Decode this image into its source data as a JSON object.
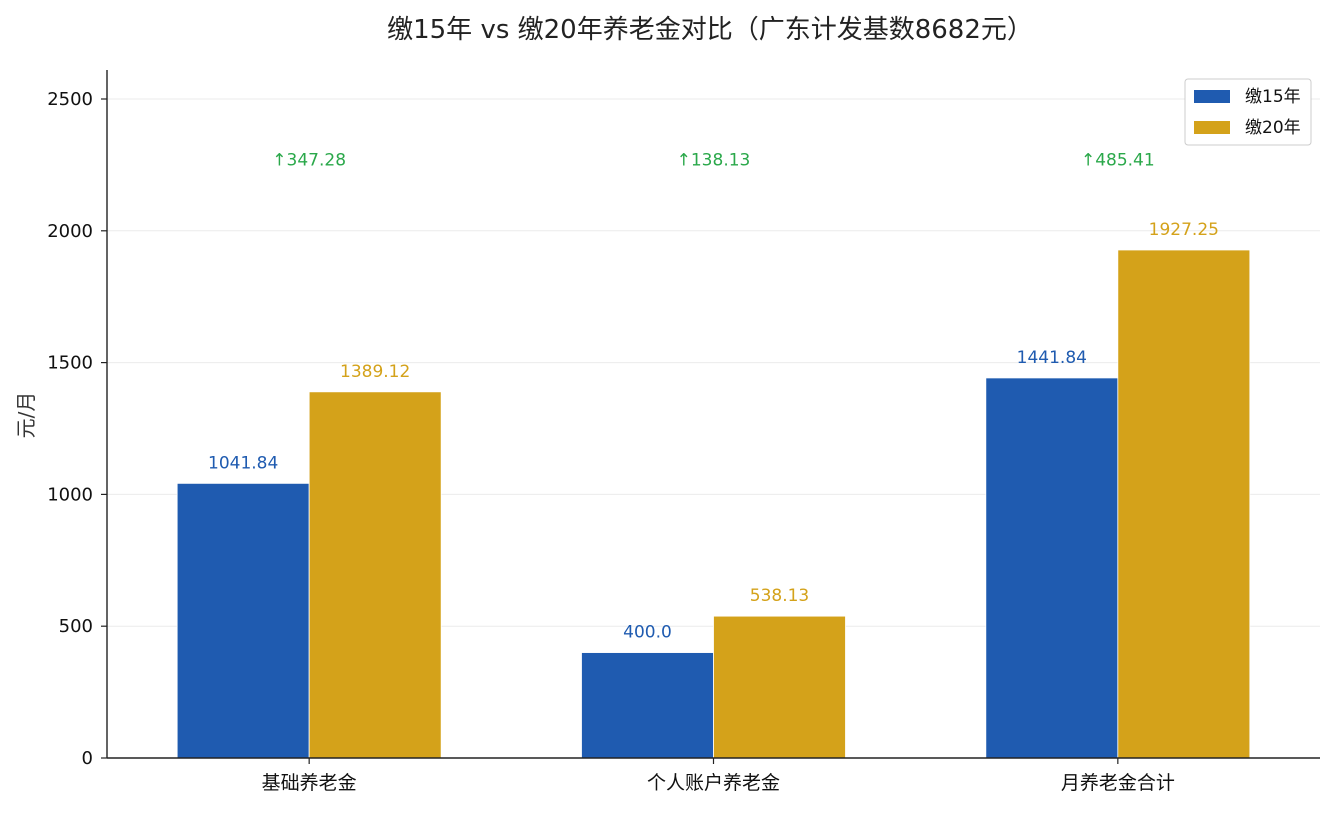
{
  "chart_data": {
    "type": "bar",
    "title": "缴15年 vs 缴20年养老金对比（广东计发基数8682元）",
    "xlabel": "",
    "ylabel": "元/月",
    "categories": [
      "基础养老金",
      "个人账户养老金",
      "月养老金合计"
    ],
    "series": [
      {
        "name": "缴15年",
        "color": "#1f5bb0",
        "values": [
          1041.84,
          400.0,
          1441.84
        ],
        "labels": [
          "1041.84",
          "400.0",
          "1441.84"
        ]
      },
      {
        "name": "缴20年",
        "color": "#d4a21a",
        "values": [
          1389.12,
          538.13,
          1927.25
        ],
        "labels": [
          "1389.12",
          "538.13",
          "1927.25"
        ]
      }
    ],
    "differences": {
      "color": "#2aa84a",
      "labels": [
        "↑347.28",
        "↑138.13",
        "↑485.41"
      ],
      "y": 2270
    },
    "ylim": [
      0,
      2610
    ],
    "yticks": [
      0,
      500,
      1000,
      1500,
      2000,
      2500
    ],
    "grid": true,
    "legend_position": "top-right"
  }
}
